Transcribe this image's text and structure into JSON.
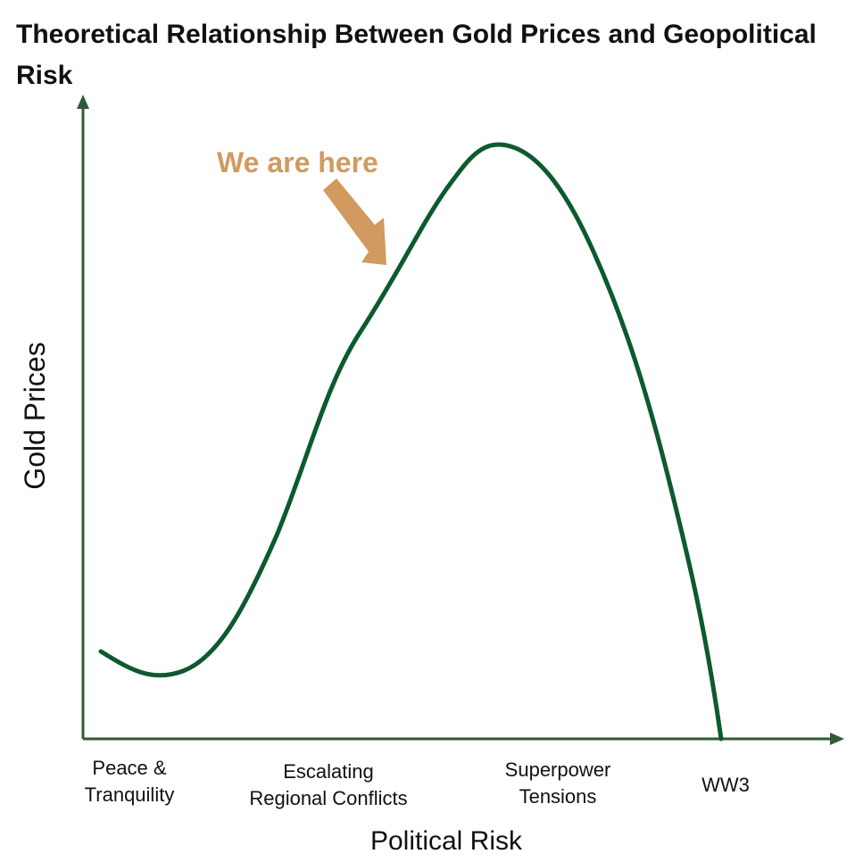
{
  "title": "Theoretical Relationship Between Gold Prices and Geopolitical Risk",
  "axes": {
    "y_label": "Gold Prices",
    "x_label": "Political Risk"
  },
  "x_categories": [
    {
      "line1": "Peace &",
      "line2": "Tranquility"
    },
    {
      "line1": "Escalating",
      "line2": "Regional Conflicts"
    },
    {
      "line1": "Superpower",
      "line2": "Tensions"
    },
    {
      "line1": "WW3",
      "line2": ""
    }
  ],
  "annotation": {
    "text": "We are here",
    "color": "#d19a5f"
  },
  "colors": {
    "axis": "#2f5a3a",
    "curve": "#0c5a2e",
    "annotation": "#d19a5f"
  }
}
